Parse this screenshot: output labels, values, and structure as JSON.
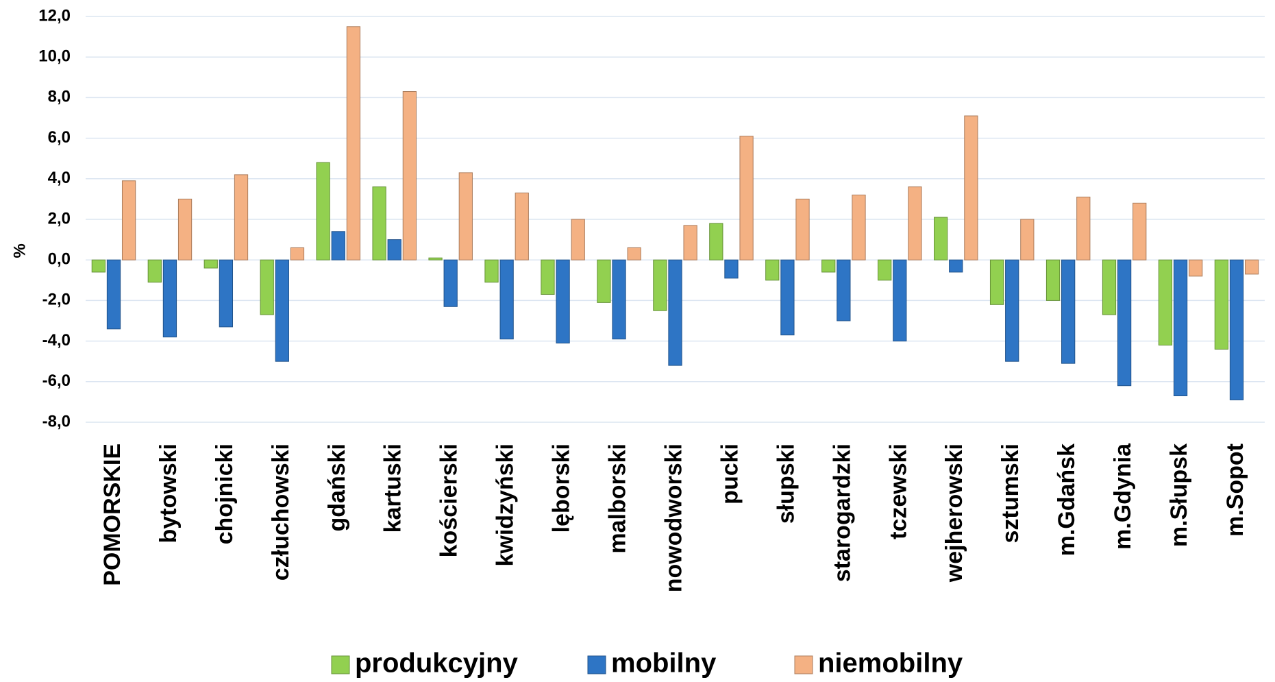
{
  "chart_data": {
    "type": "bar",
    "y_label": "%",
    "categories": [
      "POMORSKIE",
      "bytowski",
      "chojnicki",
      "człuchowski",
      "gdański",
      "kartuski",
      "kościerski",
      "kwidzyński",
      "lęborski",
      "malborski",
      "nowodworski",
      "pucki",
      "słupski",
      "starogardzki",
      "tczewski",
      "wejherowski",
      "sztumski",
      "m.Gdańsk",
      "m.Gdynia",
      "m.Słupsk",
      "m.Sopot"
    ],
    "series": [
      {
        "name": "produkcyjny",
        "color": "#92d050",
        "values": [
          -0.6,
          -1.1,
          -0.4,
          -2.7,
          4.8,
          3.6,
          0.1,
          -1.1,
          -1.7,
          -2.1,
          -2.5,
          1.8,
          -1.0,
          -0.6,
          -1.0,
          2.1,
          -2.2,
          -2.0,
          -2.7,
          -4.2,
          -4.4
        ]
      },
      {
        "name": "mobilny",
        "color": "#2e75c5",
        "values": [
          -3.4,
          -3.8,
          -3.3,
          -5.0,
          1.4,
          1.0,
          -2.3,
          -3.9,
          -4.1,
          -3.9,
          -5.2,
          -0.9,
          -3.7,
          -3.0,
          -4.0,
          -0.6,
          -5.0,
          -5.1,
          -6.2,
          -6.7,
          -6.9
        ]
      },
      {
        "name": "niemobilny",
        "color": "#f4b183",
        "values": [
          3.9,
          3.0,
          4.2,
          0.6,
          11.5,
          8.3,
          4.3,
          3.3,
          2.0,
          0.6,
          1.7,
          6.1,
          3.0,
          3.2,
          3.6,
          7.1,
          2.0,
          3.1,
          2.8,
          -0.8,
          -0.7
        ]
      }
    ],
    "ylim": [
      -8,
      12
    ],
    "yticks": [
      {
        "value": -8,
        "label": "-8,0"
      },
      {
        "value": -6,
        "label": "-6,0"
      },
      {
        "value": -4,
        "label": "-4,0"
      },
      {
        "value": -2,
        "label": "-2,0"
      },
      {
        "value": 0,
        "label": "0,0"
      },
      {
        "value": 2,
        "label": "2,0"
      },
      {
        "value": 4,
        "label": "4,0"
      },
      {
        "value": 6,
        "label": "6,0"
      },
      {
        "value": 8,
        "label": "8,0"
      },
      {
        "value": 10,
        "label": "10,0"
      },
      {
        "value": 12,
        "label": "12,0"
      }
    ],
    "grid": true
  }
}
